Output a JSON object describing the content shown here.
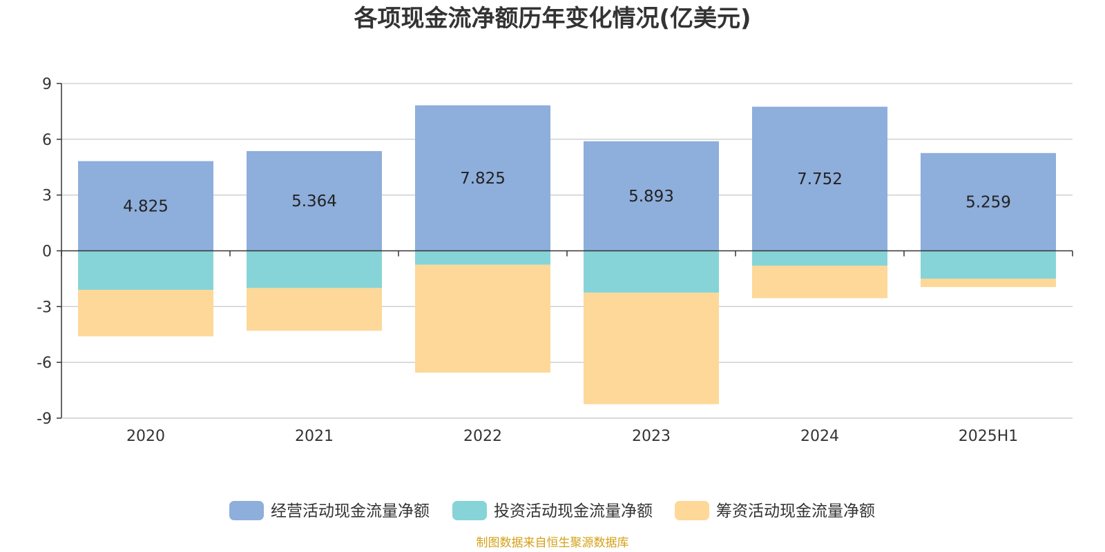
{
  "source_note": "制图数据来自恒生聚源数据库",
  "colors": {
    "operating": "#8eaedb",
    "investing": "#86d4d8",
    "financing": "#fdd899",
    "source": "#d4a017"
  },
  "chart_data": {
    "type": "bar",
    "stacked": true,
    "title": "各项现金流净额历年变化情况(亿美元)",
    "xlabel": "",
    "ylabel": "",
    "categories": [
      "2020",
      "2021",
      "2022",
      "2023",
      "2024",
      "2025H1"
    ],
    "ylim": [
      -9,
      9
    ],
    "yticks": [
      "9",
      "6",
      "3",
      "0",
      "-3",
      "-6",
      "-9"
    ],
    "ytick_values": [
      9,
      6,
      3,
      0,
      -3,
      -6,
      -9
    ],
    "grid": true,
    "legend_position": "bottom",
    "series": [
      {
        "name": "经营活动现金流量净额",
        "values": [
          4.825,
          5.364,
          7.825,
          5.893,
          7.752,
          5.259
        ],
        "labels": [
          "4.825",
          "5.364",
          "7.825",
          "5.893",
          "7.752",
          "5.259"
        ]
      },
      {
        "name": "投资活动现金流量净额",
        "values": [
          -2.1,
          -2.0,
          -0.75,
          -2.25,
          -0.8,
          -1.5
        ]
      },
      {
        "name": "筹资活动现金流量净额",
        "values": [
          -2.5,
          -2.3,
          -5.8,
          -6.0,
          -1.75,
          -0.45
        ]
      }
    ]
  }
}
